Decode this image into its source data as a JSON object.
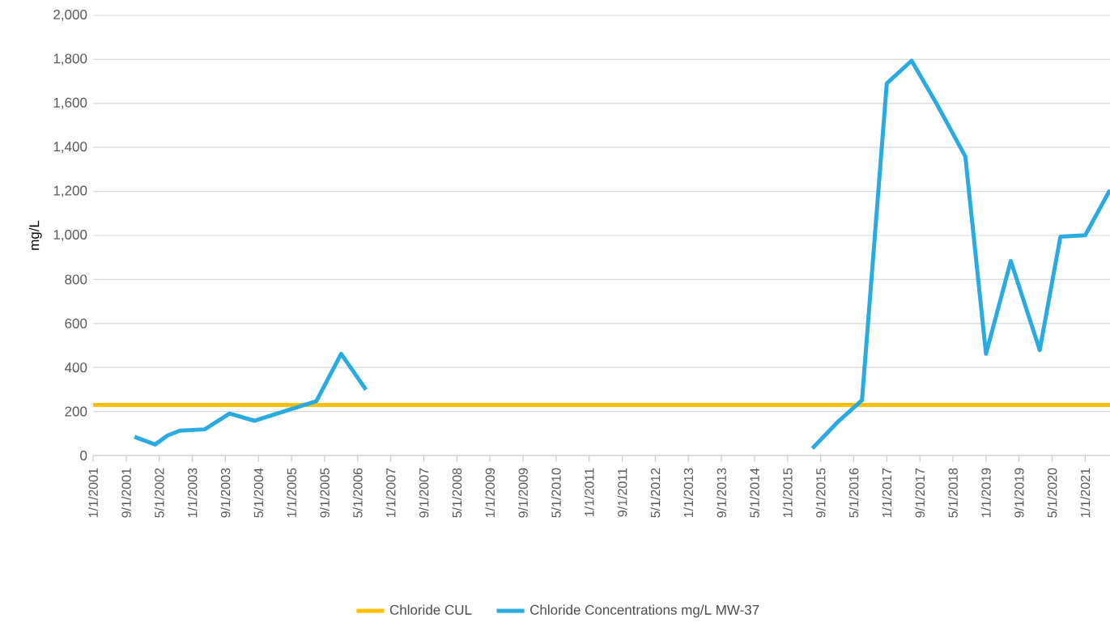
{
  "chart_data": {
    "type": "line",
    "ylabel": "mg/L",
    "xlim": [
      "2001-01-01",
      "2021-07-01"
    ],
    "ylim": [
      0,
      2000
    ],
    "yticks": [
      0,
      {
        "value": 200,
        "label": "200"
      },
      {
        "value": 400,
        "label": "400"
      },
      {
        "value": 600,
        "label": "600"
      },
      {
        "value": 800,
        "label": "800"
      },
      {
        "value": 1000,
        "label": "1,000"
      },
      {
        "value": 1200,
        "label": "1,200"
      },
      {
        "value": 1400,
        "label": "1,400"
      },
      {
        "value": 1600,
        "label": "1,600"
      },
      {
        "value": 1800,
        "label": "1,800"
      },
      {
        "value": 2000,
        "label": "2,000"
      }
    ],
    "xticks": [
      {
        "value": "2001-01-01",
        "label": "1/1/2001"
      },
      {
        "value": "2001-09-01",
        "label": "9/1/2001"
      },
      {
        "value": "2002-05-01",
        "label": "5/1/2002"
      },
      {
        "value": "2003-01-01",
        "label": "1/1/2003"
      },
      {
        "value": "2003-09-01",
        "label": "9/1/2003"
      },
      {
        "value": "2004-05-01",
        "label": "5/1/2004"
      },
      {
        "value": "2005-01-01",
        "label": "1/1/2005"
      },
      {
        "value": "2005-09-01",
        "label": "9/1/2005"
      },
      {
        "value": "2006-05-01",
        "label": "5/1/2006"
      },
      {
        "value": "2007-01-01",
        "label": "1/1/2007"
      },
      {
        "value": "2007-09-01",
        "label": "9/1/2007"
      },
      {
        "value": "2008-05-01",
        "label": "5/1/2008"
      },
      {
        "value": "2009-01-01",
        "label": "1/1/2009"
      },
      {
        "value": "2009-09-01",
        "label": "9/1/2009"
      },
      {
        "value": "2010-05-01",
        "label": "5/1/2010"
      },
      {
        "value": "2011-01-01",
        "label": "1/1/2011"
      },
      {
        "value": "2011-09-01",
        "label": "9/1/2011"
      },
      {
        "value": "2012-05-01",
        "label": "5/1/2012"
      },
      {
        "value": "2013-01-01",
        "label": "1/1/2013"
      },
      {
        "value": "2013-09-01",
        "label": "9/1/2013"
      },
      {
        "value": "2014-05-01",
        "label": "5/1/2014"
      },
      {
        "value": "2015-01-01",
        "label": "1/1/2015"
      },
      {
        "value": "2015-09-01",
        "label": "9/1/2015"
      },
      {
        "value": "2016-05-01",
        "label": "5/1/2016"
      },
      {
        "value": "2017-01-01",
        "label": "1/1/2017"
      },
      {
        "value": "2017-09-01",
        "label": "9/1/2017"
      },
      {
        "value": "2018-05-01",
        "label": "5/1/2018"
      },
      {
        "value": "2019-01-01",
        "label": "1/1/2019"
      },
      {
        "value": "2019-09-01",
        "label": "9/1/2019"
      },
      {
        "value": "2020-05-01",
        "label": "5/1/2020"
      },
      {
        "value": "2021-01-01",
        "label": "1/1/2021"
      }
    ],
    "grid": "y",
    "legend": "bottom",
    "marker": "none",
    "line_style": "solid",
    "series": [
      {
        "name": "Chloride CUL",
        "color": "#ffc000",
        "x": [
          "2001-01",
          "2021-07"
        ],
        "values": [
          230,
          230
        ]
      },
      {
        "name": "Chloride Concentrations mg/L MW-37",
        "color": "#29abe2",
        "x": [
          "2001-11",
          "2002-04",
          "2002-07",
          "2002-10",
          "2003-04",
          "2003-10",
          "2004-04",
          "2005-07",
          "2006-01",
          "2006-07",
          "2011-01",
          "2015-07",
          "2016-01",
          "2016-07",
          "2017-01",
          "2017-07",
          "2018-01",
          "2018-08",
          "2019-01",
          "2019-07",
          "2020-02",
          "2020-07",
          "2021-01",
          "2021-07"
        ],
        "values": [
          85,
          50,
          91,
          113,
          119,
          191,
          158,
          247,
          462,
          299,
          null,
          32,
          150,
          251,
          1691,
          1794,
          1600,
          1359,
          462,
          884,
          479,
          994,
          1001,
          1207
        ]
      }
    ]
  }
}
